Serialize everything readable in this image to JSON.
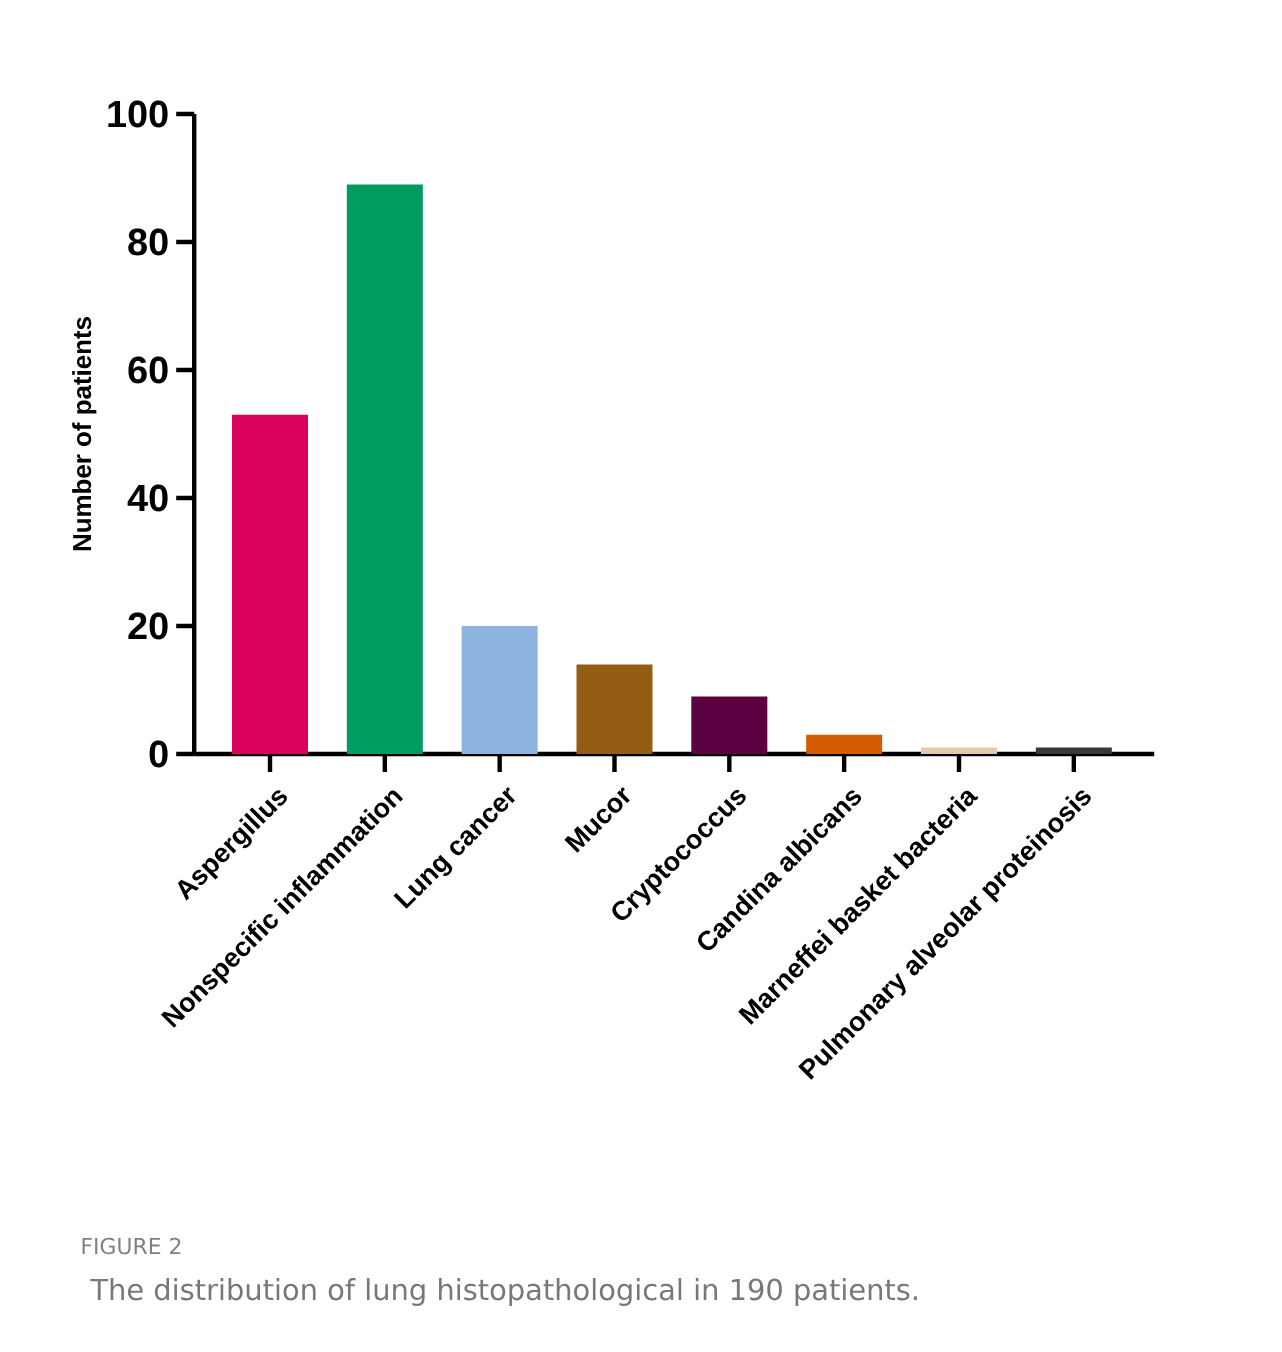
{
  "chart_data": {
    "type": "bar",
    "ylabel": "Number of patients",
    "categories": [
      "Aspergillus",
      "Nonspecific inflammation",
      "Lung cancer",
      "Mucor",
      "Cryptococcus",
      "Candina albicans",
      "Marneffei basket bacteria",
      "Pulmonary alveolar proteinosis"
    ],
    "values": [
      53,
      89,
      20,
      14,
      9,
      3,
      1,
      1
    ],
    "colors": [
      "#dc005f",
      "#009b5e",
      "#8db3e0",
      "#935e14",
      "#5c0042",
      "#d45c00",
      "#e6c9a8",
      "#3a3a3a"
    ],
    "ylim": [
      0,
      100
    ],
    "yticks": [
      0,
      20,
      40,
      60,
      80,
      100
    ],
    "annotations": [
      "FIGURE 2",
      "The distribution of lung histopathological in 190 patients."
    ]
  }
}
